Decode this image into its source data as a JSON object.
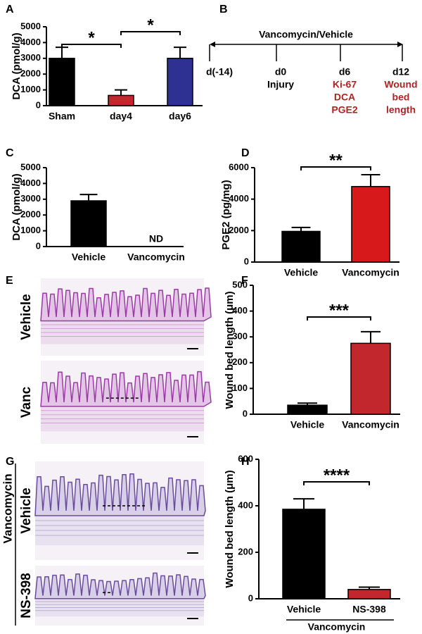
{
  "chart_data": [
    {
      "type": "bar",
      "panel": "A",
      "ylabel": "DCA (pmol/g)",
      "categories": [
        "Sham",
        "day4",
        "day6"
      ],
      "values": [
        3000,
        650,
        3000
      ],
      "errors": [
        700,
        350,
        700
      ],
      "colors": [
        "#000000",
        "#c1272d",
        "#2e3192"
      ],
      "ylim": [
        0,
        5000
      ],
      "yticks": [
        0,
        1000,
        2000,
        3000,
        4000,
        5000
      ],
      "annotations": [
        "*",
        "*"
      ]
    },
    {
      "type": "bar",
      "panel": "C",
      "ylabel": "DCA (pmol/g)",
      "categories": [
        "Vehicle",
        "Vancomycin"
      ],
      "values": [
        2900,
        null
      ],
      "value_labels": [
        null,
        "ND"
      ],
      "errors": [
        400,
        null
      ],
      "colors": [
        "#000000",
        "#c1272d"
      ],
      "ylim": [
        0,
        5000
      ],
      "yticks": [
        0,
        1000,
        2000,
        3000,
        4000,
        5000
      ]
    },
    {
      "type": "bar",
      "panel": "D",
      "ylabel": "PGE2 (pg/mg)",
      "categories": [
        "Vehicle",
        "Vancomycin"
      ],
      "values": [
        1950,
        4800
      ],
      "errors": [
        250,
        750
      ],
      "colors": [
        "#000000",
        "#d7191c"
      ],
      "ylim": [
        0,
        6000
      ],
      "yticks": [
        0,
        2000,
        4000,
        6000
      ],
      "annotations": [
        "**"
      ]
    },
    {
      "type": "bar",
      "panel": "F",
      "ylabel": "Wound bed length (μm)",
      "categories": [
        "Vehicle",
        "Vancomycin"
      ],
      "values": [
        35,
        275
      ],
      "errors": [
        8,
        45
      ],
      "colors": [
        "#000000",
        "#c1272d"
      ],
      "ylim": [
        0,
        500
      ],
      "yticks": [
        0,
        100,
        200,
        300,
        400,
        500
      ],
      "annotations": [
        "***"
      ]
    },
    {
      "type": "bar",
      "panel": "H",
      "ylabel": "Wound bed length (μm)",
      "categories": [
        "Vehicle",
        "NS-398"
      ],
      "values": [
        385,
        40
      ],
      "errors": [
        45,
        10
      ],
      "colors": [
        "#000000",
        "#c1272d"
      ],
      "ylim": [
        0,
        600
      ],
      "yticks": [
        0,
        200,
        400,
        600
      ],
      "annotations": [
        "****"
      ],
      "group_label": "Vancomycin"
    }
  ],
  "timeline": {
    "panel": "B",
    "title": "Vancomycin/Vehicle",
    "points": [
      {
        "day": "d(-14)"
      },
      {
        "day": "d0",
        "notes": [
          "Injury"
        ],
        "note_color": "#000000"
      },
      {
        "day": "d6",
        "notes": [
          "Ki-67",
          "DCA",
          "PGE2"
        ],
        "note_color": "#b22222"
      },
      {
        "day": "d12",
        "notes": [
          "Wound",
          "bed",
          "length"
        ],
        "note_color": "#b22222"
      }
    ]
  },
  "histology": [
    {
      "panel": "E",
      "rows": [
        "Vehicle",
        "Vanc"
      ]
    },
    {
      "panel": "G",
      "group": "Vancomycin",
      "rows": [
        "Vehicle",
        "NS-398"
      ]
    }
  ]
}
